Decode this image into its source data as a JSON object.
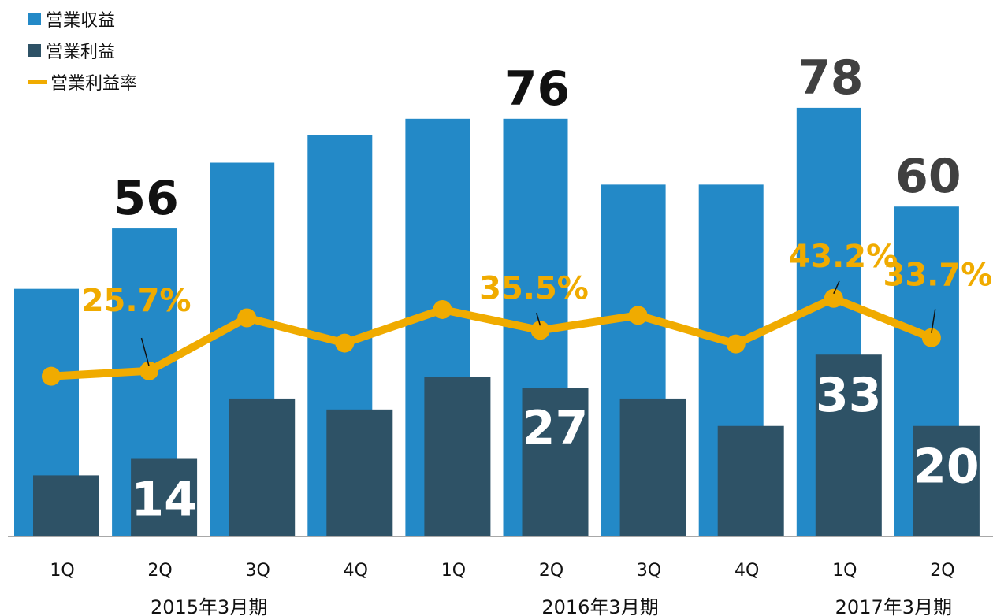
{
  "chart_data": {
    "type": "bar",
    "categories": [
      "1Q",
      "2Q",
      "3Q",
      "4Q",
      "1Q",
      "2Q",
      "3Q",
      "4Q",
      "1Q",
      "2Q"
    ],
    "groups": [
      {
        "label": "2015年3月期",
        "start": 0,
        "end": 3
      },
      {
        "label": "2016年3月期",
        "start": 4,
        "end": 7
      },
      {
        "label": "2017年3月期",
        "start": 8,
        "end": 9
      }
    ],
    "series": [
      {
        "name": "営業収益",
        "kind": "bar",
        "color": "#2389c7",
        "values": [
          45,
          56,
          68,
          73,
          76,
          76,
          64,
          64,
          78,
          60
        ]
      },
      {
        "name": "営業利益",
        "kind": "bar",
        "color": "#2e5266",
        "values": [
          11,
          14,
          25,
          23,
          29,
          27,
          25,
          20,
          33,
          20
        ]
      },
      {
        "name": "営業利益率",
        "kind": "line",
        "color": "#f0ab00",
        "unit": "%",
        "values": [
          24.4,
          25.7,
          38.5,
          32.4,
          40.5,
          35.5,
          39.1,
          32.2,
          43.2,
          33.7
        ]
      }
    ],
    "revenue_labels": [
      {
        "index": 1,
        "text": "56",
        "color": "#111111"
      },
      {
        "index": 5,
        "text": "76",
        "color": "#111111"
      },
      {
        "index": 8,
        "text": "78",
        "color": "#404040"
      },
      {
        "index": 9,
        "text": "60",
        "color": "#404040"
      }
    ],
    "profit_labels": [
      {
        "index": 1,
        "text": "14"
      },
      {
        "index": 5,
        "text": "27"
      },
      {
        "index": 8,
        "text": "33"
      },
      {
        "index": 9,
        "text": "20"
      }
    ],
    "rate_labels": [
      {
        "index": 1,
        "text": "25.7%"
      },
      {
        "index": 5,
        "text": "35.5%"
      },
      {
        "index": 8,
        "text": "43.2%"
      },
      {
        "index": 9,
        "text": "33.7%"
      }
    ],
    "ylim": [
      0,
      81
    ],
    "rate_ylim": [
      0,
      100
    ],
    "grid": false,
    "legend_position": "top-left"
  },
  "legend": [
    {
      "label": "営業収益",
      "color": "#2389c7",
      "marker": "box"
    },
    {
      "label": "営業利益",
      "color": "#2e5266",
      "marker": "box"
    },
    {
      "label": "営業利益率",
      "color": "#f0ab00",
      "marker": "line"
    }
  ]
}
